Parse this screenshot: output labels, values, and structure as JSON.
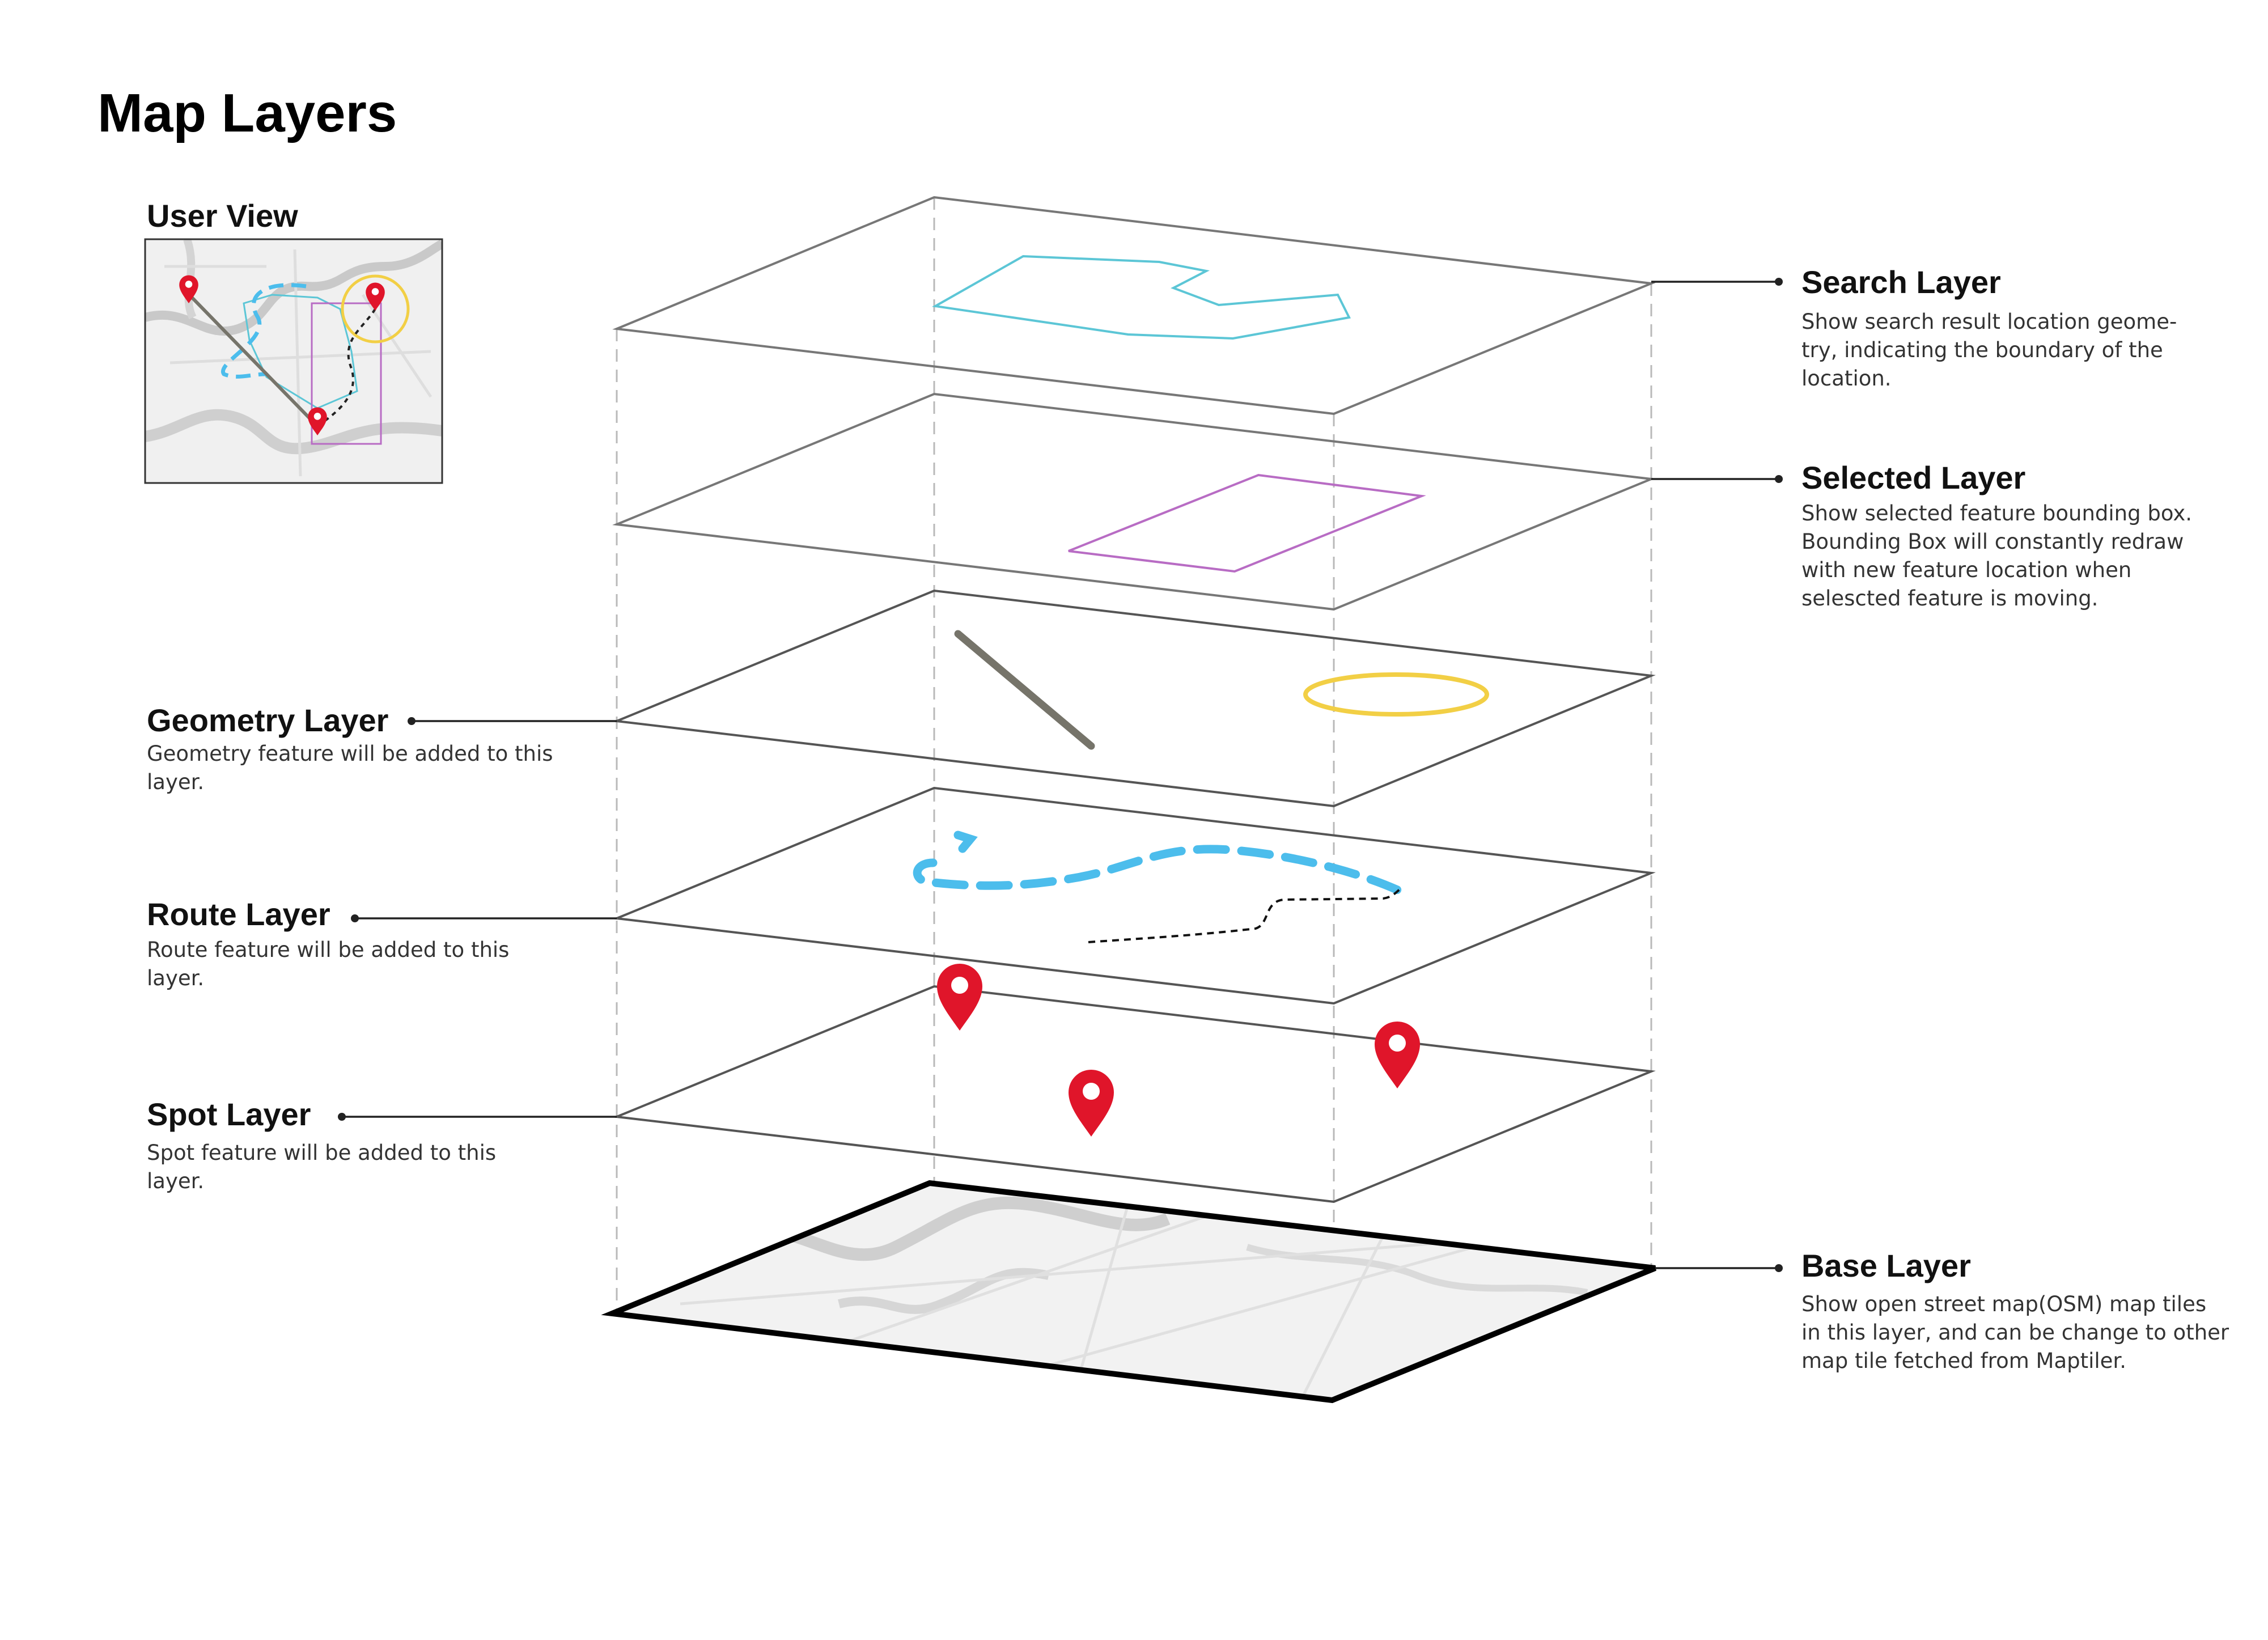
{
  "title": "Map Layers",
  "user_view": {
    "label": "User View"
  },
  "layers": {
    "search": {
      "name": "Search Layer",
      "desc": [
        "Show search result location geome-",
        "try, indicating the boundary of the",
        "location."
      ]
    },
    "selected": {
      "name": "Selected Layer",
      "desc": [
        "Show selected feature bounding box.",
        "Bounding Box will constantly redraw",
        "with new feature location when",
        "selescted feature is moving."
      ]
    },
    "geometry": {
      "name": "Geometry Layer",
      "desc": [
        "Geometry feature will be added to this",
        "layer."
      ]
    },
    "route": {
      "name": "Route Layer",
      "desc": [
        "Route feature will be added to this",
        "layer."
      ]
    },
    "spot": {
      "name": "Spot Layer",
      "desc": [
        "Spot feature will be added to this",
        "layer."
      ]
    },
    "base": {
      "name": "Base Layer",
      "desc": [
        "Show open street map(OSM) map tiles",
        "in this layer, and can be change to other",
        "map tile fetched from Maptiler."
      ]
    }
  },
  "colors": {
    "search": "#5cc6d6",
    "selected": "#b86cc4",
    "geometry_line": "#76746a",
    "geometry_circle": "#f2cf45",
    "route": "#4cbdec",
    "marker": "#e0152a"
  }
}
